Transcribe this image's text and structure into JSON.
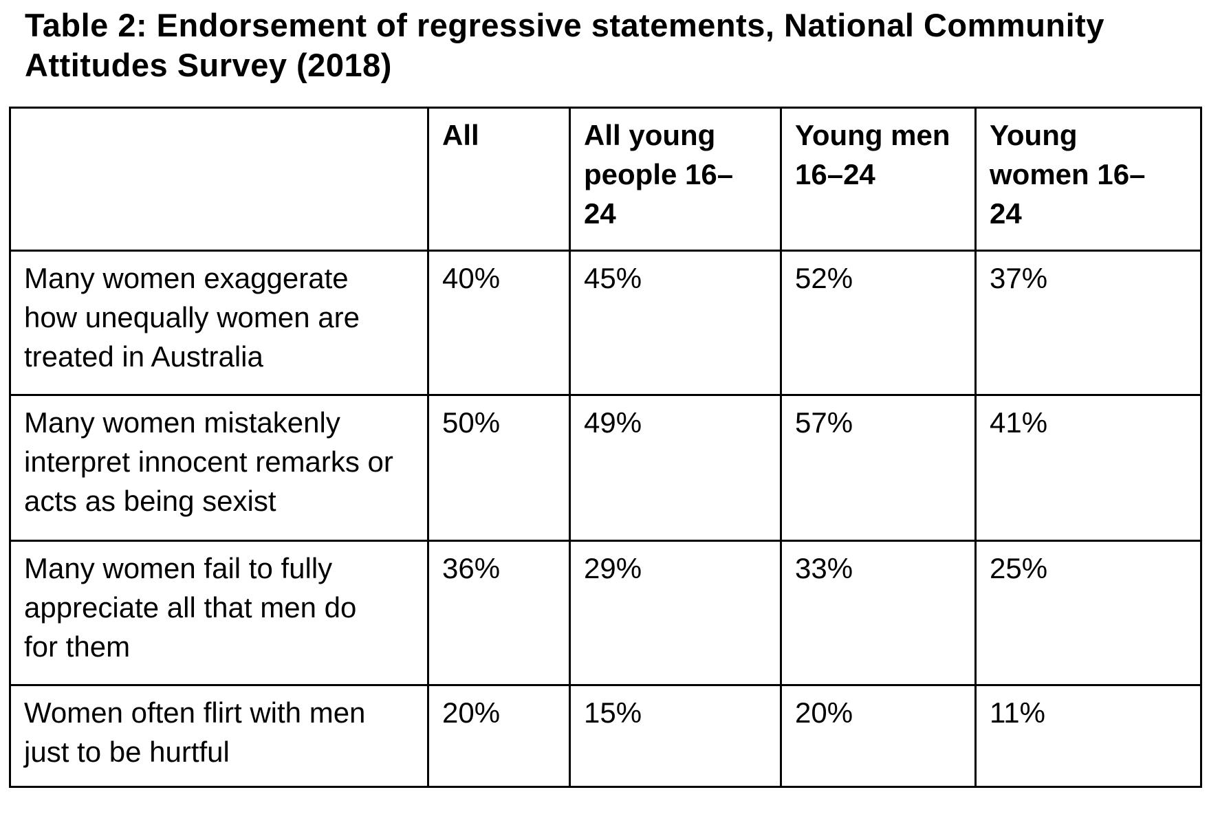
{
  "title": "Table 2: Endorsement of regressive statements, National Community\nAttitudes Survey (2018)",
  "table": {
    "headers": [
      "",
      "All",
      "All young\npeople 16–\n24",
      "Young men\n16–24",
      "Young\nwomen 16–\n24"
    ],
    "rows": [
      {
        "statement": "Many women exaggerate\nhow unequally women are\ntreated in Australia",
        "values": [
          "40%",
          "45%",
          "52%",
          "37%"
        ]
      },
      {
        "statement": "Many women mistakenly\ninterpret innocent remarks or\nacts as being sexist",
        "values": [
          "50%",
          "49%",
          "57%",
          "41%"
        ]
      },
      {
        "statement": "Many women fail to fully\nappreciate all that men do\nfor them",
        "values": [
          "36%",
          "29%",
          "33%",
          "25%"
        ]
      },
      {
        "statement": "Women often flirt with men\njust to be hurtful",
        "values": [
          "20%",
          "15%",
          "20%",
          "11%"
        ]
      }
    ]
  },
  "chart_data": {
    "type": "table",
    "title": "Table 2: Endorsement of regressive statements, National Community Attitudes Survey (2018)",
    "columns": [
      "Statement",
      "All",
      "All young people 16–24",
      "Young men 16–24",
      "Young women 16–24"
    ],
    "rows": [
      {
        "statement": "Many women exaggerate how unequally women are treated in Australia",
        "all_pct": 40,
        "all_young_people_16_24_pct": 45,
        "young_men_16_24_pct": 52,
        "young_women_16_24_pct": 37
      },
      {
        "statement": "Many women mistakenly interpret innocent remarks or acts as being sexist",
        "all_pct": 50,
        "all_young_people_16_24_pct": 49,
        "young_men_16_24_pct": 57,
        "young_women_16_24_pct": 41
      },
      {
        "statement": "Many women fail to fully appreciate all that men do for them",
        "all_pct": 36,
        "all_young_people_16_24_pct": 29,
        "young_men_16_24_pct": 33,
        "young_women_16_24_pct": 25
      },
      {
        "statement": "Women often flirt with men just to be hurtful",
        "all_pct": 20,
        "all_young_people_16_24_pct": 15,
        "young_men_16_24_pct": 20,
        "young_women_16_24_pct": 11
      }
    ]
  },
  "colors": {
    "text": "#000000",
    "border": "#000000",
    "background": "#ffffff"
  }
}
